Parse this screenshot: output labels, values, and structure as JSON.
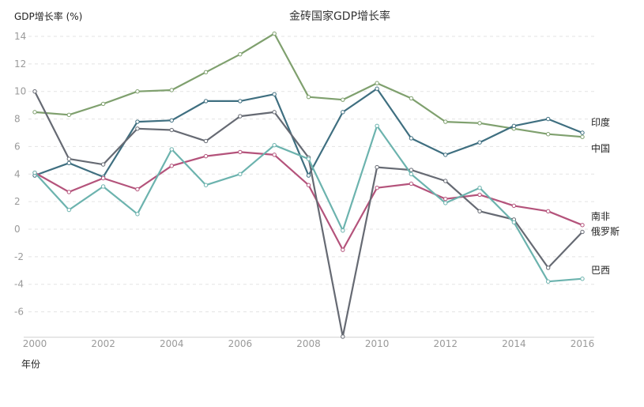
{
  "chart_data": {
    "type": "line",
    "title": "金砖国家GDP增长率",
    "ylabel": "GDP增长率 (%)",
    "xlabel": "年份",
    "x": [
      2000,
      2001,
      2002,
      2003,
      2004,
      2005,
      2006,
      2007,
      2008,
      2009,
      2010,
      2011,
      2012,
      2013,
      2014,
      2015,
      2016
    ],
    "x_ticks": [
      2000,
      2002,
      2004,
      2006,
      2008,
      2010,
      2012,
      2014,
      2016
    ],
    "ylim": [
      -7.5,
      14.5
    ],
    "y_ticks": [
      14,
      12,
      10,
      8,
      6,
      4,
      2,
      0,
      -2,
      -4,
      -6
    ],
    "grid": true,
    "legend": "none (series labeled at right end of lines)",
    "series": [
      {
        "name": "印度",
        "color": "#7fa06e",
        "values": [
          8.5,
          8.3,
          9.1,
          10.0,
          10.1,
          11.4,
          12.7,
          14.2,
          9.6,
          9.4,
          10.6,
          9.5,
          7.8,
          7.7,
          7.3,
          6.9,
          6.7
        ]
      },
      {
        "name": "中国",
        "color": "#3f6f80",
        "values": [
          3.9,
          4.8,
          3.8,
          7.8,
          7.9,
          9.3,
          9.3,
          9.8,
          3.9,
          8.5,
          10.2,
          6.6,
          5.4,
          6.3,
          7.5,
          8.0,
          7.0
        ]
      },
      {
        "name": "南非",
        "color": "#b4537b",
        "values": [
          4.1,
          2.7,
          3.7,
          2.9,
          4.6,
          5.3,
          5.6,
          5.4,
          3.2,
          -1.5,
          3.0,
          3.3,
          2.2,
          2.5,
          1.7,
          1.3,
          0.3
        ]
      },
      {
        "name": "俄罗斯",
        "color": "#666a73",
        "values": [
          10.0,
          5.1,
          4.7,
          7.3,
          7.2,
          6.4,
          8.2,
          8.5,
          5.2,
          -7.8,
          4.5,
          4.3,
          3.5,
          1.3,
          0.7,
          -2.8,
          -0.2
        ]
      },
      {
        "name": "巴西",
        "color": "#6cb3ae",
        "values": [
          4.1,
          1.4,
          3.1,
          1.1,
          5.8,
          3.2,
          4.0,
          6.1,
          5.1,
          -0.1,
          7.5,
          4.0,
          1.9,
          3.0,
          0.5,
          -3.8,
          -3.6
        ]
      }
    ]
  }
}
